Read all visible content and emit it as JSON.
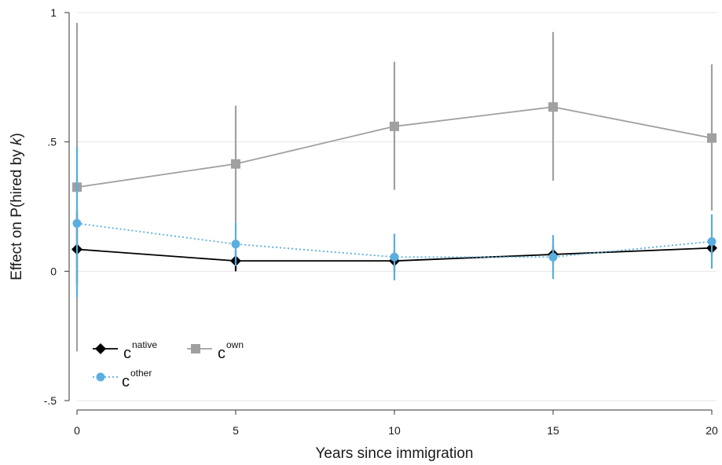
{
  "chart_data": {
    "type": "line",
    "xlabel": "Years since immigration",
    "ylabel_prefix": "Effect on P(hired by ",
    "ylabel_var": "k",
    "ylabel_suffix": ")",
    "xlim": [
      0,
      20
    ],
    "ylim": [
      -0.5,
      1
    ],
    "x_ticks": [
      0,
      5,
      10,
      15,
      20
    ],
    "x_tick_labels": [
      "0",
      "5",
      "10",
      "15",
      "20"
    ],
    "y_ticks": [
      -0.5,
      0,
      0.5,
      1
    ],
    "y_tick_labels": [
      "-.5",
      "0",
      ".5",
      "1"
    ],
    "grid": "horizontal",
    "legend_position": "bottom-left",
    "x": [
      0,
      5,
      10,
      15,
      20
    ],
    "series": [
      {
        "name": "c",
        "superscript": "native",
        "key": "native",
        "color": "#000000",
        "marker": "diamond",
        "line_style": "solid",
        "values": [
          0.085,
          0.04,
          0.04,
          0.065,
          0.09
        ],
        "ci_low": [
          -0.05,
          0.0,
          0.0,
          0.03,
          0.06
        ],
        "ci_high": [
          0.23,
          0.08,
          0.08,
          0.1,
          0.12
        ]
      },
      {
        "name": "c",
        "superscript": "other",
        "key": "other",
        "color": "#5aaee0",
        "marker": "circle",
        "line_style": "dotted",
        "values": [
          0.185,
          0.105,
          0.055,
          0.055,
          0.115
        ],
        "ci_low": [
          -0.1,
          0.02,
          -0.035,
          -0.03,
          0.01
        ],
        "ci_high": [
          0.48,
          0.19,
          0.145,
          0.14,
          0.22
        ]
      },
      {
        "name": "c",
        "superscript": "own",
        "key": "own",
        "color": "#a0a0a0",
        "marker": "square",
        "line_style": "solid",
        "values": [
          0.325,
          0.415,
          0.56,
          0.635,
          0.515
        ],
        "ci_low": [
          -0.31,
          0.19,
          0.315,
          0.35,
          0.235
        ],
        "ci_high": [
          0.96,
          0.64,
          0.81,
          0.925,
          0.8
        ]
      }
    ]
  }
}
